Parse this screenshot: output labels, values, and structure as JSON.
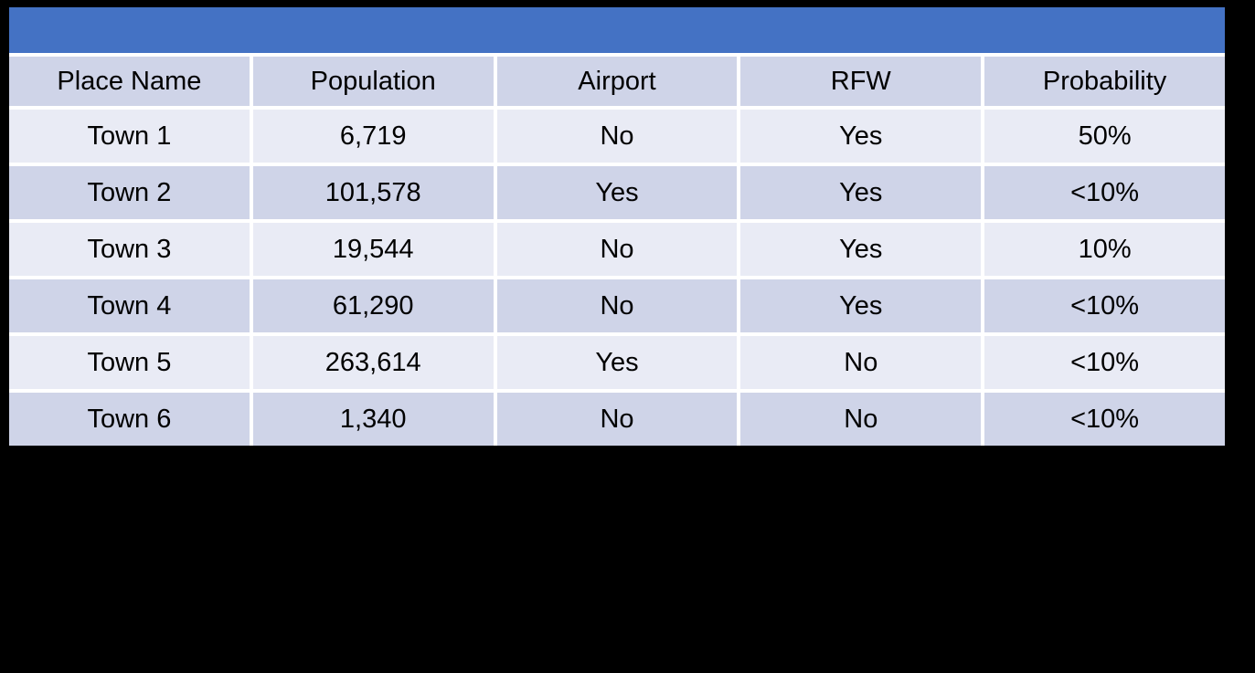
{
  "chart_data": {
    "type": "table",
    "title": "",
    "columns": [
      "Place Name",
      "Population",
      "Airport",
      "RFW",
      "Probability"
    ],
    "rows": [
      [
        "Town 1",
        "6,719",
        "No",
        "Yes",
        "50%"
      ],
      [
        "Town 2",
        "101,578",
        "Yes",
        "Yes",
        "<10%"
      ],
      [
        "Town 3",
        "19,544",
        "No",
        "Yes",
        "10%"
      ],
      [
        "Town 4",
        "61,290",
        "No",
        "Yes",
        "<10%"
      ],
      [
        "Town 5",
        "263,614",
        "Yes",
        "No",
        "<10%"
      ],
      [
        "Town 6",
        "1,340",
        "No",
        "No",
        "<10%"
      ]
    ],
    "layout": {
      "banded_rows": true,
      "title_bar_empty": true,
      "text_align": "center"
    }
  },
  "colors": {
    "background": "#000000",
    "title_bar_bg": "#4472C4",
    "band_dark": "#CFD4E8",
    "band_light": "#E9EBF5",
    "gridline": "#FFFFFF",
    "text": "#000000"
  }
}
